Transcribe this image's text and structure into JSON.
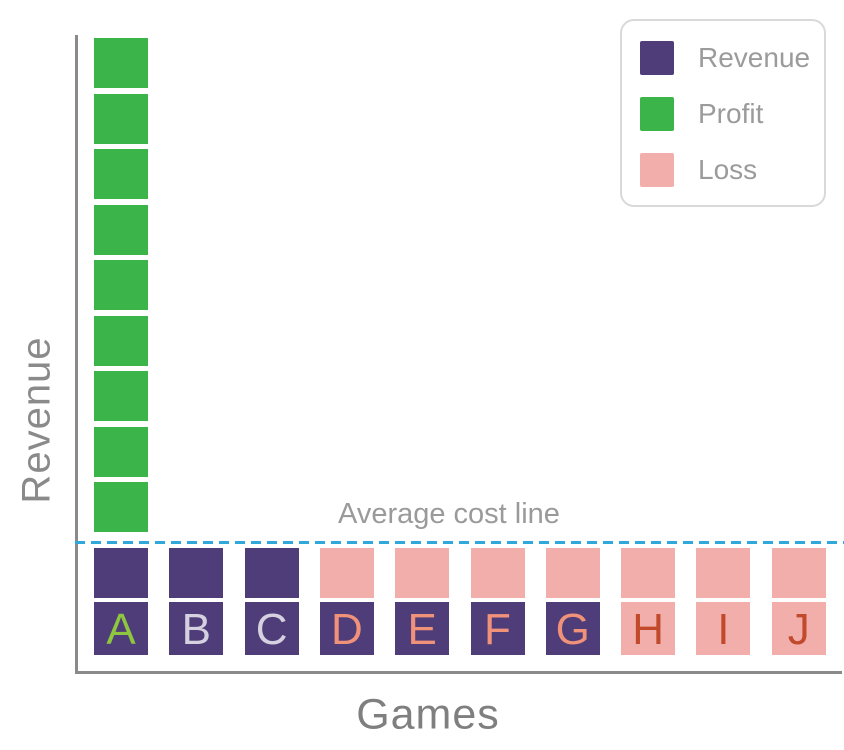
{
  "axes": {
    "y_label": "Revenue",
    "x_label": "Games"
  },
  "annotation": {
    "label": "Average cost line"
  },
  "colors": {
    "revenue": "#4e3d78",
    "profit": "#3bb54a",
    "loss": "#f2aeaa",
    "average_line": "#2fa8dc",
    "axis": "#8a8a8a"
  },
  "legend": {
    "items": [
      {
        "label": "Revenue",
        "color": "#4e3d78"
      },
      {
        "label": "Profit",
        "color": "#3bb54a"
      },
      {
        "label": "Loss",
        "color": "#f2aeaa"
      }
    ]
  },
  "bars": [
    {
      "label": "A",
      "label_color": "#8ec63f",
      "blocks": [
        "revenue",
        "revenue",
        "profit",
        "profit",
        "profit",
        "profit",
        "profit",
        "profit",
        "profit",
        "profit",
        "profit"
      ]
    },
    {
      "label": "B",
      "label_color": "#d6d1e1",
      "blocks": [
        "revenue",
        "revenue"
      ]
    },
    {
      "label": "C",
      "label_color": "#d6d1e1",
      "blocks": [
        "revenue",
        "revenue"
      ]
    },
    {
      "label": "D",
      "label_color": "#f0917a",
      "blocks": [
        "revenue",
        "loss"
      ]
    },
    {
      "label": "E",
      "label_color": "#f0917a",
      "blocks": [
        "revenue",
        "loss"
      ]
    },
    {
      "label": "F",
      "label_color": "#f0917a",
      "blocks": [
        "revenue",
        "loss"
      ]
    },
    {
      "label": "G",
      "label_color": "#f0917a",
      "blocks": [
        "revenue",
        "loss"
      ]
    },
    {
      "label": "H",
      "label_color": "#c24a2c",
      "blocks": [
        "loss",
        "loss"
      ]
    },
    {
      "label": "I",
      "label_color": "#c24a2c",
      "blocks": [
        "loss",
        "loss"
      ]
    },
    {
      "label": "J",
      "label_color": "#c24a2c",
      "blocks": [
        "loss",
        "loss"
      ]
    }
  ],
  "chart_data": {
    "type": "bar",
    "variant": "stacked-waffle-blocks",
    "title": "",
    "xlabel": "Games",
    "ylabel": "Revenue",
    "categories": [
      "A",
      "B",
      "C",
      "D",
      "E",
      "F",
      "G",
      "H",
      "I",
      "J"
    ],
    "unit": "blocks",
    "series": [
      {
        "name": "Revenue",
        "color": "#4e3d78",
        "values": [
          2,
          2,
          2,
          1,
          1,
          1,
          1,
          0,
          0,
          0
        ]
      },
      {
        "name": "Profit",
        "color": "#3bb54a",
        "values": [
          9,
          0,
          0,
          0,
          0,
          0,
          0,
          0,
          0,
          0
        ]
      },
      {
        "name": "Loss",
        "color": "#f2aeaa",
        "values": [
          0,
          0,
          0,
          1,
          1,
          1,
          1,
          2,
          2,
          2
        ]
      }
    ],
    "totals": [
      11,
      2,
      2,
      2,
      2,
      2,
      2,
      2,
      2,
      2
    ],
    "annotations": [
      {
        "type": "hline",
        "label": "Average cost line",
        "y": 2,
        "style": "dashed",
        "color": "#2fa8dc"
      }
    ],
    "ylim": [
      0,
      11.5
    ],
    "grid": false,
    "legend_position": "top-right"
  }
}
